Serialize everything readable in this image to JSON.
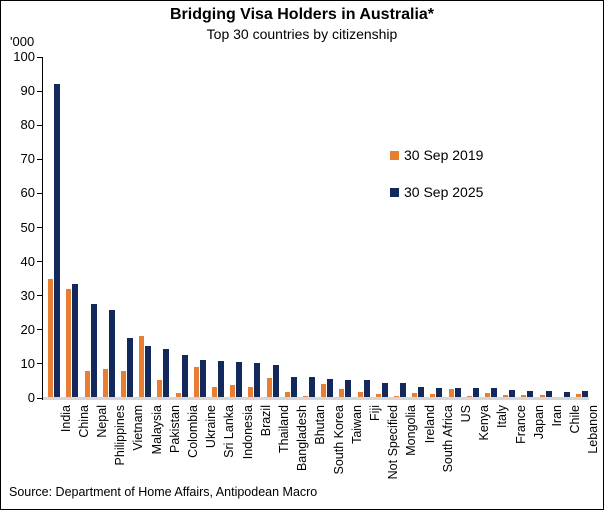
{
  "header": {
    "title": "Bridging Visa Holders in Australia*",
    "subtitle": "Top 30 countries by citizenship"
  },
  "source": "Source: Department of Home Affairs, Antipodean Macro",
  "chart_data": {
    "type": "bar",
    "title": "Bridging Visa Holders in Australia*",
    "subtitle": "Top 30 countries by citizenship",
    "ylabel": "'000",
    "ylim": [
      0,
      100
    ],
    "ytick_step": 10,
    "yticks": [
      0,
      10,
      20,
      30,
      40,
      50,
      60,
      70,
      80,
      90,
      100
    ],
    "grid": false,
    "legend_position": "upper-right-inside",
    "categories": [
      "India",
      "China",
      "Nepal",
      "Philippines",
      "Vietnam",
      "Malaysia",
      "Pakistan",
      "Colombia",
      "Ukraine",
      "Sri Lanka",
      "Indonesia",
      "Brazil",
      "Thailand",
      "Bangladesh",
      "Bhutan",
      "South Korea",
      "Taiwan",
      "Fiji",
      "Not Specified",
      "Mongolia",
      "Ireland",
      "South Africa",
      "US",
      "Kenya",
      "Italy",
      "France",
      "Japan",
      "Iran",
      "Chile",
      "Lebanon"
    ],
    "series": [
      {
        "name": "30 Sep 2019",
        "color": "#E87E31",
        "values": [
          35,
          32,
          8,
          8.5,
          8,
          18.3,
          5.3,
          1.4,
          9,
          3.1,
          3.8,
          3.1,
          5.8,
          1.9,
          0.5,
          4.1,
          2.7,
          1.7,
          1.1,
          0.7,
          1.4,
          1.1,
          2.7,
          0.5,
          1.6,
          1.0,
          0.9,
          0.9,
          0.3,
          1.2
        ]
      },
      {
        "name": "30 Sep 2025",
        "color": "#14295B",
        "values": [
          92,
          33.3,
          27.5,
          25.7,
          17.5,
          15.2,
          14.4,
          12.5,
          11.2,
          11.0,
          10.7,
          10.4,
          9.8,
          6.2,
          6.1,
          5.5,
          5.4,
          5.2,
          4.5,
          4.3,
          3.3,
          3.0,
          2.9,
          2.8,
          2.8,
          2.4,
          2.1,
          2.0,
          1.9,
          2.1
        ]
      }
    ]
  }
}
